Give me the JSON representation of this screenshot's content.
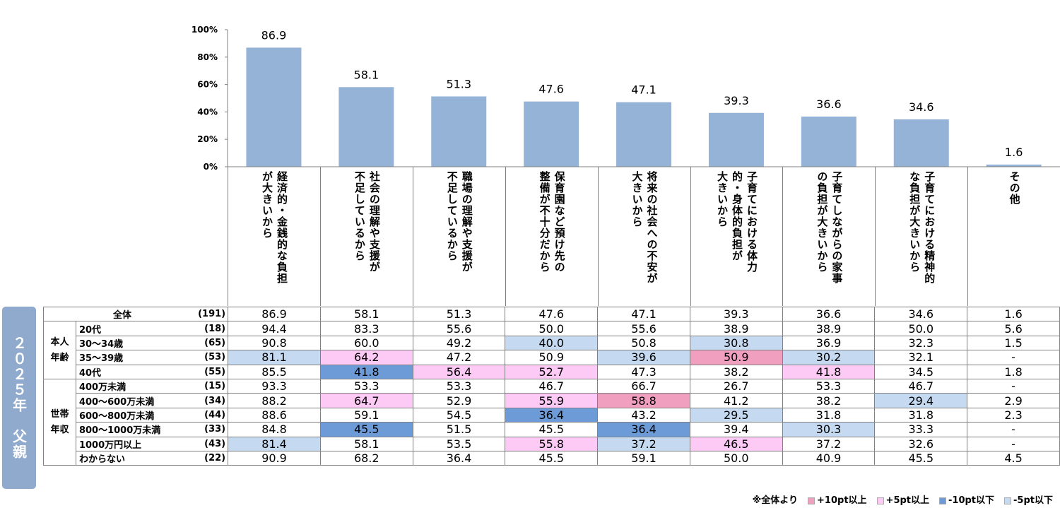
{
  "chart_data": {
    "type": "bar",
    "categories": [
      [
        "経済的・金銭的な負担",
        "が大きいから"
      ],
      [
        "社会の理解や支援が",
        "不足しているから"
      ],
      [
        "職場の理解や支援が",
        "不足しているから"
      ],
      [
        "保育園など預け先の",
        "整備が不十分だから"
      ],
      [
        "将来の社会への不安が",
        "大きいから"
      ],
      [
        "子育てにおける体力",
        "的・身体的負担が",
        "大きいから"
      ],
      [
        "子育てしながらの家事",
        "の負担が大きいから"
      ],
      [
        "子育てにおける精神的",
        "な負担が大きいから"
      ],
      [
        "その他"
      ]
    ],
    "values": [
      86.9,
      58.1,
      51.3,
      47.6,
      47.1,
      39.3,
      36.6,
      34.6,
      1.6
    ],
    "value_labels": [
      "86.9",
      "58.1",
      "51.3",
      "47.6",
      "47.1",
      "39.3",
      "36.6",
      "34.6",
      "1.6"
    ],
    "ylim": [
      0,
      100
    ],
    "yticks": [
      "0%",
      "20%",
      "40%",
      "60%",
      "80%",
      "100%"
    ],
    "bar_color": "#95b3d7"
  },
  "side_label": "２０２５年　父親",
  "table": {
    "groups": [
      {
        "label": "本人\n年齢",
        "start": 1,
        "span": 4
      },
      {
        "label": "世帯\n年収",
        "start": 5,
        "span": 6
      }
    ],
    "rows": [
      {
        "label": "全体",
        "n": "(191)",
        "values": [
          "86.9",
          "58.1",
          "51.3",
          "47.6",
          "47.1",
          "39.3",
          "36.6",
          "34.6",
          "1.6"
        ],
        "marks": [
          0,
          0,
          0,
          0,
          0,
          0,
          0,
          0,
          0
        ]
      },
      {
        "label": "20代",
        "n": "(18)",
        "values": [
          "94.4",
          "83.3",
          "55.6",
          "50.0",
          "55.6",
          "38.9",
          "38.9",
          "50.0",
          "5.6"
        ],
        "marks": [
          0,
          0,
          0,
          0,
          0,
          0,
          0,
          0,
          0
        ]
      },
      {
        "label": "30～34歳",
        "n": "(65)",
        "values": [
          "90.8",
          "60.0",
          "49.2",
          "40.0",
          "50.8",
          "30.8",
          "36.9",
          "32.3",
          "1.5"
        ],
        "marks": [
          0,
          0,
          0,
          -5,
          0,
          -5,
          0,
          0,
          0
        ]
      },
      {
        "label": "35～39歳",
        "n": "(53)",
        "values": [
          "81.1",
          "64.2",
          "47.2",
          "50.9",
          "39.6",
          "50.9",
          "30.2",
          "32.1",
          "-"
        ],
        "marks": [
          -5,
          5,
          0,
          0,
          -5,
          10,
          -5,
          0,
          0
        ]
      },
      {
        "label": "40代",
        "n": "(55)",
        "values": [
          "85.5",
          "41.8",
          "56.4",
          "52.7",
          "47.3",
          "38.2",
          "41.8",
          "34.5",
          "1.8"
        ],
        "marks": [
          0,
          -10,
          5,
          5,
          0,
          0,
          5,
          0,
          0
        ]
      },
      {
        "label": "400万未満",
        "n": "(15)",
        "values": [
          "93.3",
          "53.3",
          "53.3",
          "46.7",
          "66.7",
          "26.7",
          "53.3",
          "46.7",
          "-"
        ],
        "marks": [
          0,
          0,
          0,
          0,
          0,
          0,
          0,
          0,
          0
        ]
      },
      {
        "label": "400～600万未満",
        "n": "(34)",
        "values": [
          "88.2",
          "64.7",
          "52.9",
          "55.9",
          "58.8",
          "41.2",
          "38.2",
          "29.4",
          "2.9"
        ],
        "marks": [
          0,
          5,
          0,
          5,
          10,
          0,
          0,
          -5,
          0
        ]
      },
      {
        "label": "600～800万未満",
        "n": "(44)",
        "values": [
          "88.6",
          "59.1",
          "54.5",
          "36.4",
          "43.2",
          "29.5",
          "31.8",
          "31.8",
          "2.3"
        ],
        "marks": [
          0,
          0,
          0,
          -10,
          0,
          -5,
          0,
          0,
          0
        ]
      },
      {
        "label": "800～1000万未満",
        "n": "(33)",
        "values": [
          "84.8",
          "45.5",
          "51.5",
          "45.5",
          "36.4",
          "39.4",
          "30.3",
          "33.3",
          "-"
        ],
        "marks": [
          0,
          -10,
          0,
          0,
          -10,
          0,
          -5,
          0,
          0
        ]
      },
      {
        "label": "1000万円以上",
        "n": "(43)",
        "values": [
          "81.4",
          "58.1",
          "53.5",
          "55.8",
          "37.2",
          "46.5",
          "37.2",
          "32.6",
          "-"
        ],
        "marks": [
          -5,
          0,
          0,
          5,
          -5,
          5,
          0,
          0,
          0
        ]
      },
      {
        "label": "わからない",
        "n": "(22)",
        "values": [
          "90.9",
          "68.2",
          "36.4",
          "45.5",
          "59.1",
          "50.0",
          "40.9",
          "45.5",
          "4.5"
        ],
        "marks": [
          0,
          0,
          0,
          0,
          0,
          0,
          0,
          0,
          0
        ]
      }
    ]
  },
  "legend": {
    "prefix": "※全体より",
    "items": [
      {
        "key": "10",
        "label": "+10pt以上",
        "color": "#f19fbf"
      },
      {
        "key": "5",
        "label": "+5pt以上",
        "color": "#fccaf5"
      },
      {
        "key": "-10",
        "label": "-10pt以下",
        "color": "#6d9bd8"
      },
      {
        "key": "-5",
        "label": "-5pt以下",
        "color": "#c5d9f1"
      }
    ]
  }
}
